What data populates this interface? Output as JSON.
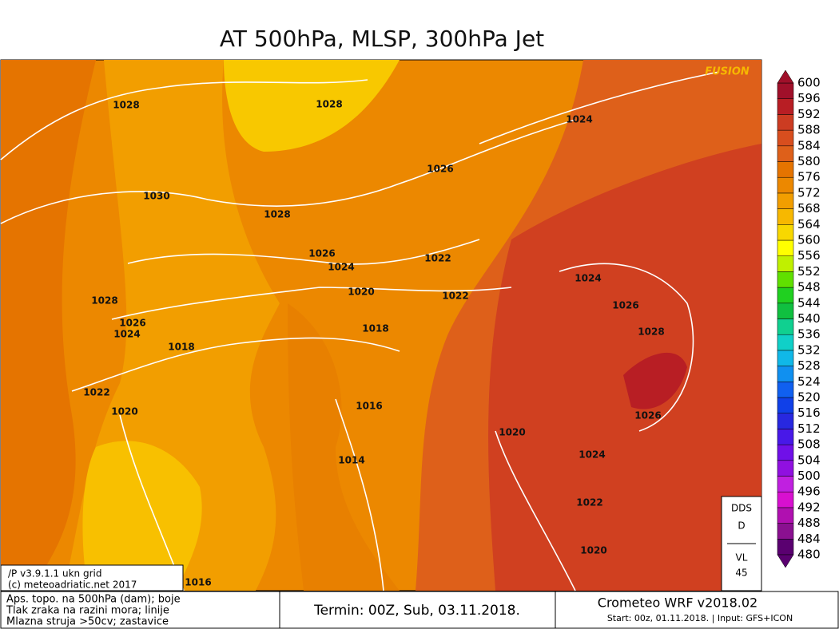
{
  "title": "AT 500hPa, MLSP, 300hPa Jet",
  "watermark": "FUSION",
  "colorbar": {
    "ticks": [
      480,
      484,
      488,
      492,
      496,
      500,
      504,
      508,
      512,
      516,
      520,
      524,
      528,
      532,
      536,
      540,
      544,
      548,
      552,
      556,
      560,
      564,
      568,
      572,
      576,
      580,
      584,
      588,
      592,
      596,
      600
    ],
    "colors": [
      "#5a0070",
      "#8a1090",
      "#b010b0",
      "#d810d0",
      "#c020e0",
      "#9010e0",
      "#7010e8",
      "#4818e8",
      "#2828e0",
      "#1040e8",
      "#1060f0",
      "#1090f0",
      "#10b8e8",
      "#10d0c8",
      "#10d090",
      "#10c040",
      "#20d020",
      "#60e000",
      "#c0f000",
      "#ffff00",
      "#f8d800",
      "#f7b800",
      "#f29e00",
      "#ec8800",
      "#e57400",
      "#de601a",
      "#d84e1e",
      "#cc3c22",
      "#b81e24",
      "#a0102a"
    ]
  },
  "isobar_labels": [
    "1028",
    "1028",
    "1024",
    "1026",
    "1030",
    "1028",
    "1026",
    "1024",
    "1022",
    "1020",
    "1022",
    "1024",
    "1026",
    "1028",
    "1028",
    "1026",
    "1024",
    "1018",
    "1018",
    "1022",
    "1020",
    "1016",
    "1026",
    "1020",
    "1014",
    "1024",
    "1022",
    "1020",
    "1016"
  ],
  "info_box": [
    "/P  v3.9.1.1  ukn grid",
    "(c) meteoadriatic.net 2017"
  ],
  "dds_box": [
    "DDS",
    "D",
    "VL",
    "45"
  ],
  "footer": {
    "legend": [
      "Aps. topo. na 500hPa (dam); boje",
      "Tlak zraka na razini mora; linije",
      "Mlazna struja >50cv; zastavice"
    ],
    "termin": "Termin: 00Z, Sub, 03.11.2018.",
    "model": "Crometeo WRF v2018.02",
    "start": "Start: 00z, 01.11.2018. | Input: GFS+ICON"
  }
}
